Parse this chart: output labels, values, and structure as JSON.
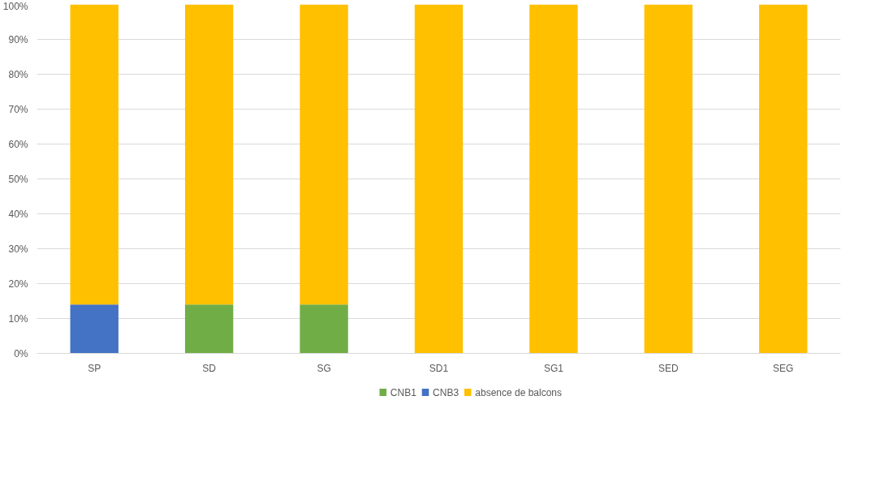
{
  "chart_data": {
    "type": "bar",
    "stacked": true,
    "categories": [
      "SP",
      "SD",
      "SG",
      "SD1",
      "SG1",
      "SED",
      "SEG"
    ],
    "series": [
      {
        "name": "CNB1",
        "color": "#70ad47",
        "values": [
          null,
          14,
          14,
          null,
          null,
          null,
          null
        ]
      },
      {
        "name": "CNB3",
        "color": "#4472c4",
        "values": [
          14,
          null,
          null,
          null,
          null,
          null,
          null
        ]
      },
      {
        "name": "absence de balcons",
        "color": "#ffc000",
        "values": [
          86,
          86,
          86,
          100,
          100,
          100,
          100
        ]
      }
    ],
    "ylim": [
      0,
      100
    ],
    "yticks": [
      {
        "value": 0,
        "label": "0%"
      },
      {
        "value": 10,
        "label": "10%"
      },
      {
        "value": 20,
        "label": "20%"
      },
      {
        "value": 30,
        "label": "30%"
      },
      {
        "value": 40,
        "label": "40%"
      },
      {
        "value": 50,
        "label": "50%"
      },
      {
        "value": 60,
        "label": "60%"
      },
      {
        "value": 70,
        "label": "70%"
      },
      {
        "value": 80,
        "label": "80%"
      },
      {
        "value": 90,
        "label": "90%"
      },
      {
        "value": 100,
        "label": "100%"
      }
    ],
    "grid": "y",
    "legend": "bottom"
  }
}
